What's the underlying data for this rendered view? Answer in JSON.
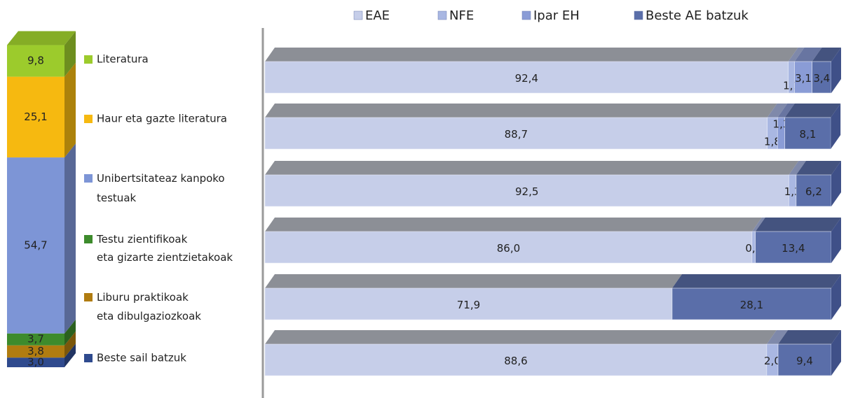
{
  "chart_data": [
    {
      "type": "stacked-column",
      "categories": [
        "Literatura",
        "Haur eta gazte literatura",
        "Unibertsitateaz kanpoko testuak",
        "Testu zientifikoak eta gizarte zientzietakoak",
        "Liburu praktikoak eta dibulgaziozkoak",
        "Beste sail batzuk"
      ],
      "values": [
        9.8,
        25.1,
        54.7,
        3.7,
        3.8,
        3.0
      ],
      "value_labels": [
        "9,8",
        "25,1",
        "54,7",
        "3,7",
        "3,8",
        "3,0"
      ],
      "colors": [
        "#9ccb2c",
        "#f6b910",
        "#7d95d6",
        "#3d8b2c",
        "#b07c10",
        "#2f4a8e"
      ],
      "ylim": [
        0,
        100
      ]
    },
    {
      "type": "stacked-barh",
      "xlim": [
        0,
        100
      ],
      "series": [
        {
          "name": "EAE",
          "color": "#c6cee9",
          "values": [
            92.4,
            88.7,
            92.5,
            86.0,
            71.9,
            88.6
          ],
          "value_labels": [
            "92,4",
            "88,7",
            "92,5",
            "86,0",
            "71,9",
            "88,6"
          ]
        },
        {
          "name": "NFE",
          "color": "#a9b7e2",
          "values": [
            1.1,
            1.8,
            1.3,
            0.6,
            null,
            2.0
          ],
          "value_labels": [
            "1,1",
            "1,8",
            "1,3",
            "0,6",
            null,
            "2,0"
          ]
        },
        {
          "name": "Ipar EH",
          "color": "#8a9cd6",
          "values": [
            3.1,
            1.3,
            null,
            null,
            null,
            null
          ],
          "value_labels": [
            "3,1",
            "1,3",
            null,
            null,
            null,
            null
          ]
        },
        {
          "name": "Beste AE batzuk",
          "color": "#5a6ea9",
          "values": [
            3.4,
            8.1,
            6.2,
            13.4,
            28.1,
            9.4
          ],
          "value_labels": [
            "3,4",
            "8,1",
            "6,2",
            "13,4",
            "28,1",
            "9,4"
          ]
        }
      ]
    }
  ]
}
